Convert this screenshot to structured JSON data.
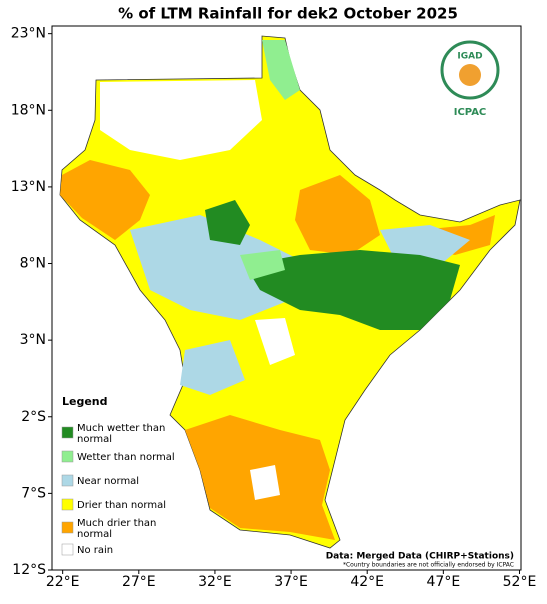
{
  "chart_data": {
    "type": "map",
    "title": "% of LTM Rainfall for dek2 October 2025",
    "xlim": [
      21.3,
      52.1
    ],
    "ylim": [
      -12,
      23.5
    ],
    "xticks": [
      {
        "value": 22,
        "label": "22°E"
      },
      {
        "value": 27,
        "label": "27°E"
      },
      {
        "value": 32,
        "label": "32°E"
      },
      {
        "value": 37,
        "label": "37°E"
      },
      {
        "value": 42,
        "label": "42°E"
      },
      {
        "value": 47,
        "label": "47°E"
      },
      {
        "value": 52,
        "label": "52°E"
      }
    ],
    "yticks": [
      {
        "value": 23,
        "label": "23°N"
      },
      {
        "value": 18,
        "label": "18°N"
      },
      {
        "value": 13,
        "label": "13°N"
      },
      {
        "value": 8,
        "label": "8°N"
      },
      {
        "value": 3,
        "label": "3°N"
      },
      {
        "value": -2,
        "label": "2°S"
      },
      {
        "value": -7,
        "label": "7°S"
      },
      {
        "value": -12,
        "label": "12°S"
      }
    ],
    "legend": {
      "title": "Legend",
      "items": [
        {
          "name": "Much wetter than normal",
          "color": "#228b22"
        },
        {
          "name": "Wetter than normal",
          "color": "#90ee90"
        },
        {
          "name": "Near normal",
          "color": "#add8e6"
        },
        {
          "name": "Drier than normal",
          "color": "#ffff00"
        },
        {
          "name": "Much drier than normal",
          "color": "#ffa500"
        },
        {
          "name": "No rain",
          "color": "#ffffff"
        }
      ]
    },
    "logo": {
      "name": "IGAD",
      "subtitle": "ICPAC"
    },
    "source": "Data: Merged Data (CHIRP+Stations)",
    "note": "*Country boundaries are not officially endorsed by ICPAC"
  }
}
